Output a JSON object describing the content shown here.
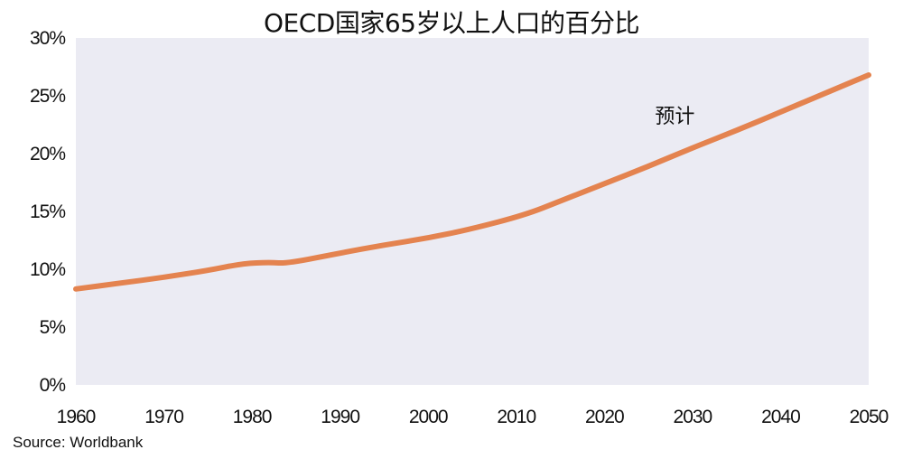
{
  "chart_data": {
    "type": "line",
    "title": "OECD国家65岁以上人口的百分比",
    "xlabel": "",
    "ylabel": "",
    "xlim": [
      1960,
      2050
    ],
    "ylim": [
      0,
      30
    ],
    "x_ticks": [
      1960,
      1970,
      1980,
      1990,
      2000,
      2010,
      2020,
      2030,
      2040,
      2050
    ],
    "y_ticks": [
      0,
      5,
      10,
      15,
      20,
      25,
      30
    ],
    "y_tick_labels": [
      "0%",
      "5%",
      "10%",
      "15%",
      "20%",
      "25%",
      "30%"
    ],
    "grid": false,
    "legend": "none",
    "background_color": "#ebebf3",
    "line_color": "#e4834f",
    "series": [
      {
        "x": [
          1960,
          1965,
          1970,
          1975,
          1979,
          1982,
          1984,
          1990,
          1995,
          2000,
          2005,
          2011,
          2015,
          2020,
          2025,
          2030,
          2035,
          2040,
          2045,
          2050
        ],
        "y": [
          8.3,
          8.8,
          9.3,
          9.9,
          10.5,
          10.6,
          10.5,
          11.4,
          12.1,
          12.7,
          13.5,
          14.7,
          15.9,
          17.4,
          18.9,
          20.5,
          22.0,
          23.6,
          25.2,
          26.8
        ]
      }
    ],
    "annotations": [
      {
        "text": "预计",
        "x": 2028,
        "y": 23.3
      }
    ]
  },
  "footer": {
    "source": "Source: Worldbank"
  }
}
